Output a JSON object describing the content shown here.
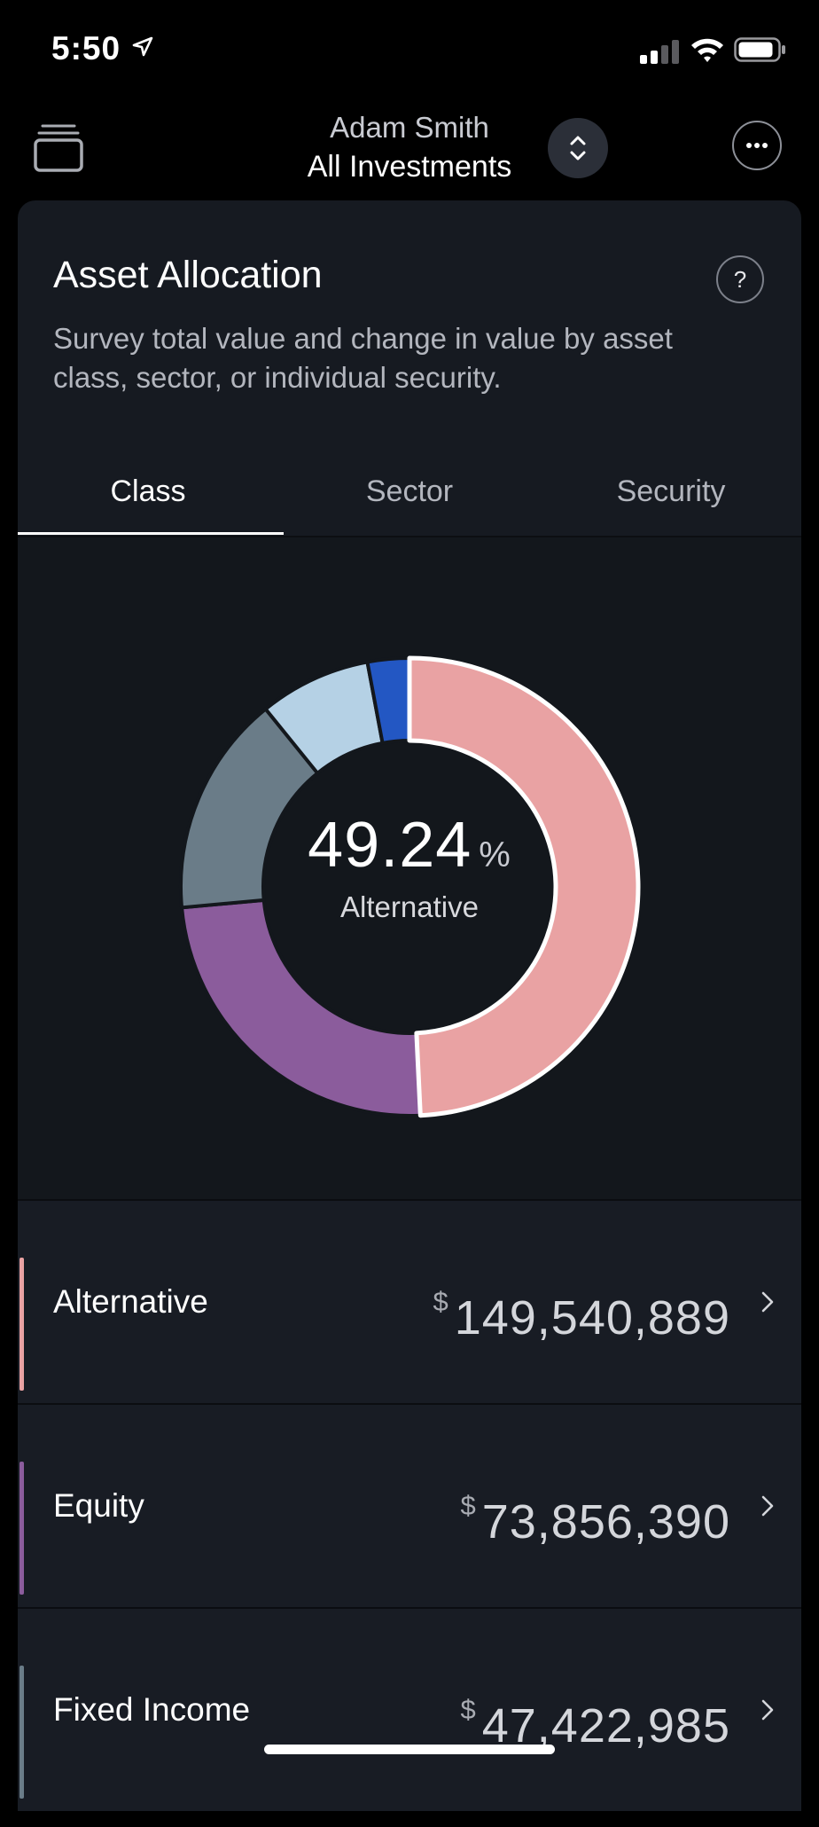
{
  "status_bar": {
    "time": "5:50"
  },
  "nav": {
    "account_name": "Adam Smith",
    "account_scope": "All Investments"
  },
  "card": {
    "title": "Asset Allocation",
    "help_label": "?",
    "description": "Survey total value and change in value by asset class, sector, or individual security."
  },
  "tabs": [
    {
      "label": "Class",
      "active": true
    },
    {
      "label": "Sector",
      "active": false
    },
    {
      "label": "Security",
      "active": false
    }
  ],
  "donut": {
    "center_value": "49.24",
    "center_unit": "%",
    "center_label": "Alternative"
  },
  "chart_data": {
    "type": "pie",
    "categories": [
      "Alternative",
      "Equity",
      "Fixed Income",
      "",
      ""
    ],
    "values": [
      49.24,
      24.32,
      15.61,
      7.88,
      2.95
    ],
    "colors": [
      "#e9a2a3",
      "#8b5c9c",
      "#6a7c88",
      "#b5d1e5",
      "#2357c3"
    ]
  },
  "rows": [
    {
      "label": "Alternative",
      "currency": "$",
      "value": "149,540,889",
      "color": "#e9a2a3"
    },
    {
      "label": "Equity",
      "currency": "$",
      "value": "73,856,390",
      "color": "#8b5c9c"
    },
    {
      "label": "Fixed Income",
      "currency": "$",
      "value": "47,422,985",
      "color": "#6a7c88"
    }
  ]
}
